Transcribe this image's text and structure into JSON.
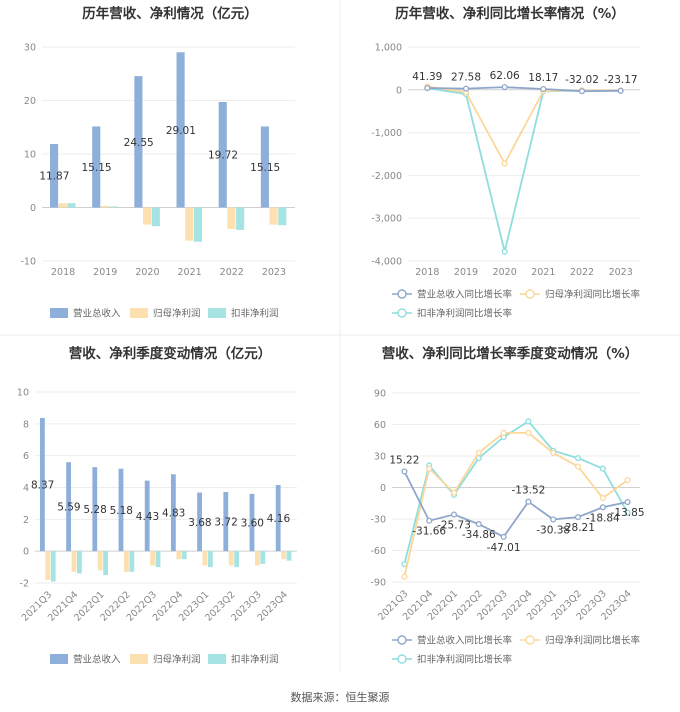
{
  "footer": "数据来源：恒生聚源",
  "colors": {
    "revenue": "#8fafdb",
    "parent_profit": "#fce0b0",
    "deducted_profit": "#a6e3e3",
    "revenue_line": "#8fa6cc",
    "parent_line": "#fcd79a",
    "deducted_line": "#8edede"
  },
  "chart_data": [
    {
      "type": "bar",
      "title": "历年营收、净利情况（亿元）",
      "categories": [
        "2018",
        "2019",
        "2020",
        "2021",
        "2022",
        "2023"
      ],
      "ylim": [
        -10,
        30
      ],
      "yticks": [
        -10,
        0,
        10,
        20,
        30
      ],
      "series": [
        {
          "name": "营业总收入",
          "values": [
            11.87,
            15.15,
            24.55,
            29.01,
            19.72,
            15.15
          ],
          "labels": [
            "11.87",
            "15.15",
            "24.55",
            "29.01",
            "19.72",
            "15.15"
          ]
        },
        {
          "name": "归母净利润",
          "values": [
            0.8,
            0.3,
            -3.2,
            -6.2,
            -4.0,
            -3.2
          ]
        },
        {
          "name": "扣非净利润",
          "values": [
            0.8,
            0.2,
            -3.5,
            -6.4,
            -4.2,
            -3.3
          ]
        }
      ],
      "legend": "bottom",
      "grid": true
    },
    {
      "type": "line",
      "title": "历年营收、净利同比增长率情况（%）",
      "categories": [
        "2018",
        "2019",
        "2020",
        "2021",
        "2022",
        "2023"
      ],
      "ylim": [
        -4000,
        1000
      ],
      "yticks": [
        -4000,
        -3000,
        -2000,
        -1000,
        0,
        1000
      ],
      "ytick_labels": [
        "-4,000",
        "-3,000",
        "-2,000",
        "-1,000",
        "0",
        "1,000"
      ],
      "series": [
        {
          "name": "营业总收入同比增长率",
          "values": [
            41.39,
            27.58,
            62.06,
            18.17,
            -32.02,
            -23.17
          ],
          "labels": [
            "41.39",
            "27.58",
            "62.06",
            "18.17",
            "-32.02",
            "-23.17"
          ]
        },
        {
          "name": "归母净利润同比增长率",
          "values": [
            80,
            -60,
            -1720,
            -30,
            -10,
            -15
          ]
        },
        {
          "name": "扣非净利润同比增长率",
          "values": [
            40,
            -100,
            -3780,
            -40,
            -20,
            -20
          ]
        }
      ],
      "legend": "bottom",
      "grid": true
    },
    {
      "type": "bar",
      "title": "营收、净利季度变动情况（亿元）",
      "categories": [
        "2021Q3",
        "2021Q4",
        "2022Q1",
        "2022Q2",
        "2022Q3",
        "2022Q4",
        "2023Q1",
        "2023Q2",
        "2023Q3",
        "2023Q4"
      ],
      "ylim": [
        -2,
        10
      ],
      "yticks": [
        -2,
        0,
        2,
        4,
        6,
        8,
        10
      ],
      "series": [
        {
          "name": "营业总收入",
          "values": [
            8.37,
            5.59,
            5.28,
            5.18,
            4.43,
            4.83,
            3.68,
            3.72,
            3.6,
            4.16
          ],
          "labels": [
            "8.37",
            "5.59",
            "5.28",
            "5.18",
            "4.43",
            "4.83",
            "3.68",
            "3.72",
            "3.60",
            "4.16"
          ]
        },
        {
          "name": "归母净利润",
          "values": [
            -1.8,
            -1.3,
            -1.2,
            -1.3,
            -0.9,
            -0.5,
            -0.9,
            -0.9,
            -0.9,
            -0.5
          ]
        },
        {
          "name": "扣非净利润",
          "values": [
            -1.9,
            -1.4,
            -1.5,
            -1.3,
            -1.0,
            -0.5,
            -1.0,
            -1.0,
            -0.8,
            -0.6
          ]
        }
      ],
      "legend": "bottom",
      "grid": true
    },
    {
      "type": "line",
      "title": "营收、净利同比增长率季度变动情况（%）",
      "categories": [
        "2021Q3",
        "2021Q4",
        "2022Q1",
        "2022Q2",
        "2022Q3",
        "2022Q4",
        "2023Q1",
        "2023Q2",
        "2023Q3",
        "2023Q4"
      ],
      "ylim": [
        -90,
        90
      ],
      "yticks": [
        -90,
        -60,
        -30,
        0,
        30,
        60,
        90
      ],
      "series": [
        {
          "name": "营业总收入同比增长率",
          "values": [
            15.22,
            -31.66,
            -25.73,
            -34.86,
            -47.01,
            -13.52,
            -30.38,
            -28.21,
            -18.84,
            -13.85
          ],
          "labels": [
            "15.22",
            "-31.66",
            "-25.73",
            "-34.86",
            "-47.01",
            "-13.52",
            "-30.38",
            "-28.21",
            "-18.84",
            "-13.85"
          ]
        },
        {
          "name": "归母净利润同比增长率",
          "values": [
            -85,
            18,
            -5,
            33,
            52,
            52,
            33,
            20,
            -10,
            7
          ]
        },
        {
          "name": "扣非净利润同比增长率",
          "values": [
            -73,
            21,
            -7,
            28,
            48,
            63,
            35,
            28,
            18,
            -24
          ]
        }
      ],
      "legend": "bottom",
      "grid": true
    }
  ]
}
